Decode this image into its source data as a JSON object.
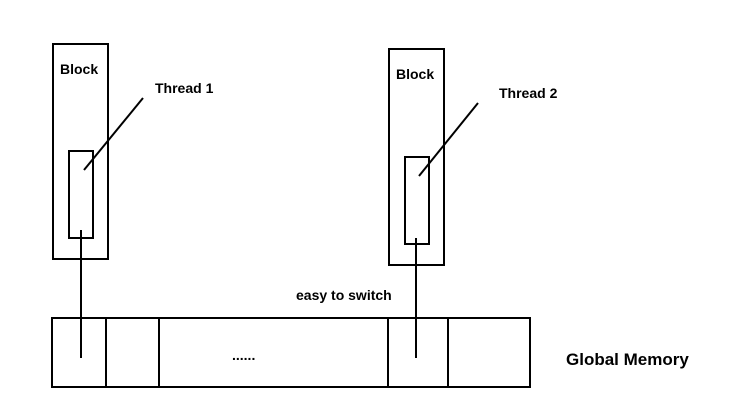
{
  "blocks": [
    {
      "label": "Block",
      "thread_label": "Thread 1"
    },
    {
      "label": "Block",
      "thread_label": "Thread 2"
    }
  ],
  "annotation": {
    "text": "easy to switch",
    "color": "#e02020"
  },
  "memory": {
    "label": "Global Memory",
    "ellipsis": "......"
  },
  "colors": {
    "stroke": "#000000",
    "background": "#ffffff"
  }
}
